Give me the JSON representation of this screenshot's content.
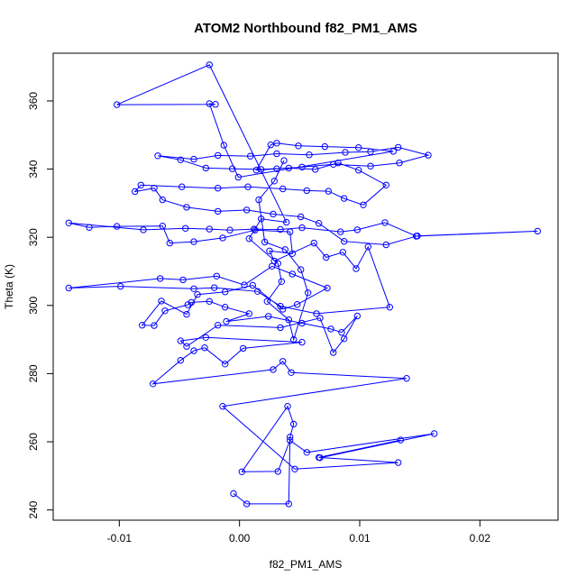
{
  "chart_data": {
    "type": "line",
    "title": "ATOM2 Northbound f82_PM1_AMS",
    "xlabel": "f82_PM1_AMS",
    "ylabel": "Theta (K)",
    "xlim": [
      -0.0155,
      0.0265
    ],
    "ylim": [
      237,
      374
    ],
    "x_ticks": [
      -0.01,
      0.0,
      0.01,
      0.02
    ],
    "x_tick_labels": [
      "-0.01",
      "0.00",
      "0.01",
      "0.02"
    ],
    "y_ticks": [
      240,
      260,
      280,
      300,
      320,
      340,
      360
    ],
    "y_tick_labels": [
      "240",
      "260",
      "280",
      "300",
      "320",
      "340",
      "360"
    ],
    "grid": false,
    "markers": "open-circle",
    "series": [
      {
        "color": "#0000ff",
        "points": [
          [
            -0.0005,
            244.8
          ],
          [
            0.0006,
            241.8
          ],
          [
            0.0041,
            241.8
          ],
          [
            0.0042,
            261.4
          ],
          [
            0.0045,
            265.2
          ],
          [
            0.004,
            270.4
          ],
          [
            0.0002,
            251.2
          ],
          [
            0.0032,
            251.3
          ],
          [
            0.0042,
            260.4
          ],
          [
            0.0056,
            256.9
          ],
          [
            0.0162,
            262.4
          ],
          [
            0.0067,
            255.3
          ],
          [
            0.0134,
            260.5
          ],
          [
            0.0066,
            255.4
          ],
          [
            0.0132,
            253.9
          ],
          [
            0.0046,
            252.0
          ],
          [
            -0.0014,
            270.4
          ],
          [
            0.0139,
            278.6
          ],
          [
            0.0043,
            280.3
          ],
          [
            0.0036,
            283.6
          ],
          [
            0.0028,
            281.2
          ],
          [
            -0.0072,
            277.0
          ],
          [
            -0.0049,
            283.9
          ],
          [
            -0.0038,
            286.7
          ],
          [
            -0.0029,
            287.6
          ],
          [
            -0.0012,
            282.8
          ],
          [
            0.0003,
            287.4
          ],
          [
            0.0052,
            289.2
          ],
          [
            -0.0028,
            290.6
          ],
          [
            -0.0049,
            289.6
          ],
          [
            -0.0044,
            288.0
          ],
          [
            -0.0018,
            294.2
          ],
          [
            0.0034,
            293.5
          ],
          [
            0.0067,
            296.3
          ],
          [
            0.0078,
            286.2
          ],
          [
            0.0087,
            290.2
          ],
          [
            0.0098,
            296.9
          ],
          [
            0.0085,
            292.1
          ],
          [
            0.0076,
            293.1
          ],
          [
            0.0052,
            294.8
          ],
          [
            0.0024,
            296.8
          ],
          [
            -0.0011,
            295.3
          ],
          [
            0.0008,
            297.6
          ],
          [
            -0.0012,
            299.5
          ],
          [
            -0.0025,
            301.2
          ],
          [
            -0.004,
            300.9
          ],
          [
            -0.0043,
            300.2
          ],
          [
            -0.0062,
            298.4
          ],
          [
            -0.0071,
            294.1
          ],
          [
            -0.0081,
            294.2
          ],
          [
            -0.0065,
            301.3
          ],
          [
            -0.0044,
            297.4
          ],
          [
            -0.0035,
            303.2
          ],
          [
            -0.0012,
            304.0
          ],
          [
            0.0011,
            305.9
          ],
          [
            0.0036,
            298.9
          ],
          [
            0.0048,
            300.3
          ],
          [
            0.0073,
            305.1
          ],
          [
            0.0044,
            309.2
          ],
          [
            0.0027,
            311.5
          ],
          [
            0.0004,
            306.0
          ],
          [
            -0.0019,
            308.6
          ],
          [
            -0.0047,
            307.5
          ],
          [
            -0.0066,
            307.9
          ],
          [
            -0.0142,
            305.1
          ],
          [
            -0.0099,
            305.6
          ],
          [
            -0.0038,
            304.9
          ],
          [
            -0.0021,
            305.2
          ],
          [
            0.0015,
            304.1
          ],
          [
            0.0034,
            299.8
          ],
          [
            0.0064,
            297.6
          ],
          [
            0.0125,
            299.5
          ],
          [
            0.0107,
            317.2
          ],
          [
            0.0097,
            310.8
          ],
          [
            0.0086,
            315.6
          ],
          [
            0.0072,
            314.1
          ],
          [
            0.0062,
            318.3
          ],
          [
            0.0029,
            313.0
          ],
          [
            0.0025,
            316.0
          ],
          [
            0.0044,
            315.2
          ],
          [
            0.0042,
            321.6
          ],
          [
            0.0013,
            322.1
          ],
          [
            -0.0014,
            319.8
          ],
          [
            -0.0038,
            318.7
          ],
          [
            -0.0058,
            318.3
          ],
          [
            -0.0064,
            323.3
          ],
          [
            -0.0102,
            323.2
          ],
          [
            -0.0125,
            322.9
          ],
          [
            -0.0142,
            324.2
          ],
          [
            -0.008,
            322.2
          ],
          [
            -0.0045,
            322.6
          ],
          [
            -0.0025,
            322.4
          ],
          [
            -0.0008,
            322.1
          ],
          [
            0.0012,
            322.4
          ],
          [
            0.0034,
            322.3
          ],
          [
            0.0052,
            322.8
          ],
          [
            0.0084,
            321.6
          ],
          [
            0.0098,
            322.2
          ],
          [
            0.0121,
            324.3
          ],
          [
            0.0147,
            320.3
          ],
          [
            0.0248,
            321.8
          ],
          [
            0.0148,
            320.4
          ],
          [
            0.0122,
            317.8
          ],
          [
            0.0087,
            318.8
          ],
          [
            0.0066,
            324.1
          ],
          [
            0.0051,
            326.0
          ],
          [
            0.0028,
            326.8
          ],
          [
            0.0006,
            328.0
          ],
          [
            -0.0018,
            327.6
          ],
          [
            -0.0044,
            328.8
          ],
          [
            -0.0064,
            331.0
          ],
          [
            -0.0071,
            334.4
          ],
          [
            -0.0087,
            333.4
          ],
          [
            -0.0082,
            335.3
          ],
          [
            -0.0048,
            334.8
          ],
          [
            -0.0018,
            334.4
          ],
          [
            0.0007,
            334.8
          ],
          [
            0.0036,
            334.2
          ],
          [
            0.0056,
            333.7
          ],
          [
            0.0074,
            333.5
          ],
          [
            0.0087,
            331.4
          ],
          [
            0.0103,
            329.5
          ],
          [
            0.0122,
            335.3
          ],
          [
            0.0099,
            339.7
          ],
          [
            0.0082,
            341.8
          ],
          [
            0.0063,
            339.9
          ],
          [
            0.0041,
            340.3
          ],
          [
            0.0018,
            339.9
          ],
          [
            -0.0006,
            340.1
          ],
          [
            -0.0028,
            340.3
          ],
          [
            -0.0049,
            342.7
          ],
          [
            -0.0068,
            343.9
          ],
          [
            -0.0038,
            342.9
          ],
          [
            -0.0018,
            344.0
          ],
          [
            0.0009,
            343.8
          ],
          [
            0.0031,
            344.5
          ],
          [
            0.0058,
            344.2
          ],
          [
            0.0088,
            344.9
          ],
          [
            0.0109,
            345.1
          ],
          [
            0.0132,
            346.4
          ],
          [
            0.0157,
            344.1
          ],
          [
            0.0133,
            341.8
          ],
          [
            0.0109,
            340.9
          ],
          [
            0.0078,
            341.4
          ],
          [
            0.0052,
            340.6
          ],
          [
            0.0031,
            340.1
          ],
          [
            0.0014,
            339.7
          ],
          [
            0.0026,
            347.1
          ],
          [
            0.0031,
            347.6
          ],
          [
            0.0049,
            346.8
          ],
          [
            0.0071,
            346.6
          ],
          [
            0.0099,
            346.3
          ],
          [
            0.0128,
            345.2
          ],
          [
            -0.0001,
            337.6
          ],
          [
            -0.0013,
            347.0
          ],
          [
            -0.0025,
            359.2
          ],
          [
            -0.002,
            359.0
          ],
          [
            -0.0102,
            358.9
          ],
          [
            -0.0025,
            370.6
          ],
          [
            0.0039,
            324.4
          ],
          [
            0.0018,
            325.4
          ],
          [
            0.0008,
            319.6
          ],
          [
            0.0032,
            312.3
          ],
          [
            0.0035,
            307.0
          ],
          [
            0.0023,
            301.2
          ],
          [
            0.0041,
            295.8
          ],
          [
            0.0045,
            290.0
          ],
          [
            0.0057,
            303.7
          ],
          [
            0.0051,
            310.5
          ],
          [
            0.0038,
            316.4
          ],
          [
            0.0021,
            318.6
          ],
          [
            0.0016,
            331.0
          ],
          [
            0.0029,
            336.5
          ],
          [
            0.0037,
            342.5
          ]
        ]
      }
    ]
  }
}
